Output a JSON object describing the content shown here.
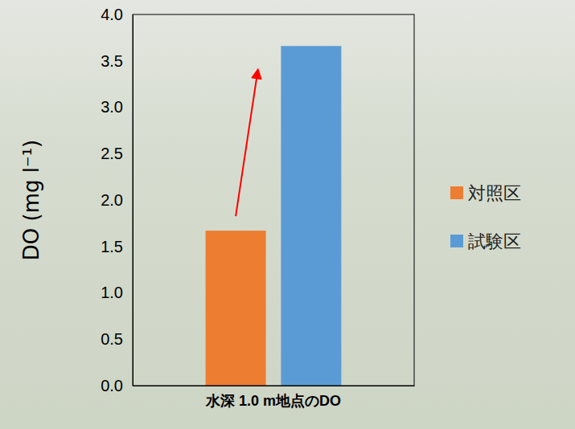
{
  "chart_data": {
    "type": "bar",
    "y_label": "DO (mg l⁻¹)",
    "categories": [
      "水深 1.0 m地点のDO"
    ],
    "series": [
      {
        "name": "対照区",
        "color": "#ed7d31",
        "values": [
          1.67
        ]
      },
      {
        "name": "試験区",
        "color": "#5b9bd5",
        "values": [
          3.66
        ]
      }
    ],
    "ylim": [
      0,
      4
    ],
    "yticks": [
      {
        "value": 0,
        "label": "0.0"
      },
      0.5,
      {
        "value": 1,
        "label": "1.0"
      },
      1.5,
      {
        "value": 2,
        "label": "2.0"
      },
      2.5,
      {
        "value": 3,
        "label": "3.0"
      },
      3.5,
      {
        "value": 4,
        "label": "4.0"
      }
    ],
    "grid": false,
    "legend": "right"
  }
}
